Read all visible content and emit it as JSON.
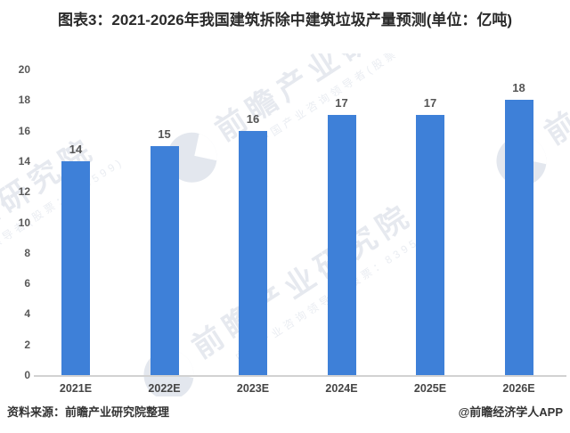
{
  "title": "图表3：2021-2026年我国建筑拆除中建筑垃圾产量预测(单位：亿吨)",
  "chart_data": {
    "type": "bar",
    "categories": [
      "2021E",
      "2022E",
      "2023E",
      "2024E",
      "2025E",
      "2026E"
    ],
    "values": [
      14,
      15,
      16,
      17,
      17,
      18
    ],
    "title": "图表3：2021-2026年我国建筑拆除中建筑垃圾产量预测(单位：亿吨)",
    "xlabel": "",
    "ylabel": "",
    "ylim": [
      0,
      20
    ],
    "ytick_step": 2,
    "grid": false,
    "legend": null,
    "bar_color": "#3E80D8",
    "value_labels_shown": true
  },
  "watermark": {
    "brand": "前瞻产业研究院",
    "subtitle": "中国产业咨询领导者(股票：839599)"
  },
  "footer": {
    "source": "资料来源：前瞻产业研究院整理",
    "credit": "@前瞻经济学人APP"
  }
}
